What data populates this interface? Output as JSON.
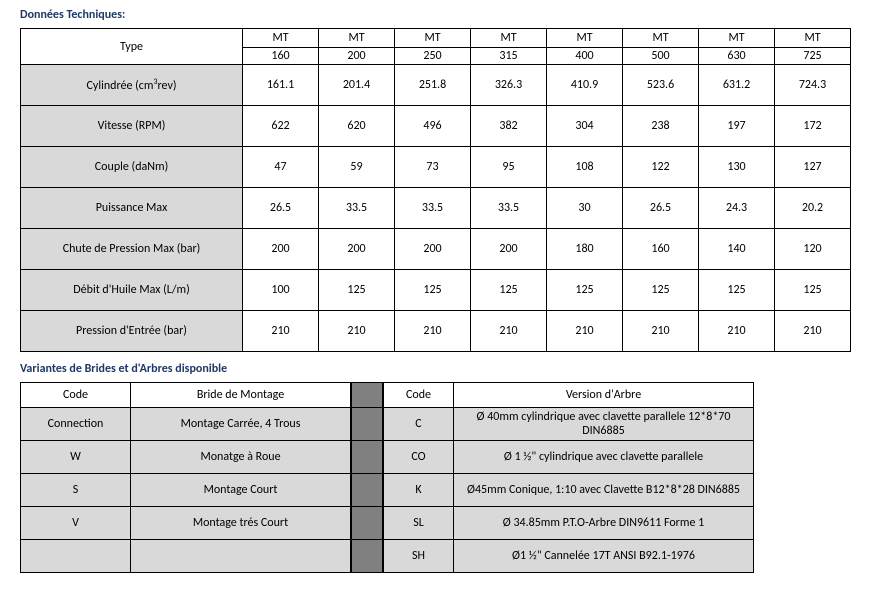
{
  "titles": {
    "tech": "Données Techniques:",
    "variants": "Variantes de Brides et d'Arbres disponible"
  },
  "tech_table": {
    "type_label": "Type",
    "model_prefix": "MT",
    "models": [
      "160",
      "200",
      "250",
      "315",
      "400",
      "500",
      "630",
      "725"
    ],
    "rows": [
      {
        "label_html": "Cylindrée (cm<sup>3</sup>rev)",
        "vals": [
          "161.1",
          "201.4",
          "251.8",
          "326.3",
          "410.9",
          "523.6",
          "631.2",
          "724.3"
        ]
      },
      {
        "label_html": "Vitesse (RPM)",
        "vals": [
          "622",
          "620",
          "496",
          "382",
          "304",
          "238",
          "197",
          "172"
        ]
      },
      {
        "label_html": "Couple (daNm)",
        "vals": [
          "47",
          "59",
          "73",
          "95",
          "108",
          "122",
          "130",
          "127"
        ]
      },
      {
        "label_html": "Puissance Max",
        "vals": [
          "26.5",
          "33.5",
          "33.5",
          "33.5",
          "30",
          "26.5",
          "24.3",
          "20.2"
        ]
      },
      {
        "label_html": "Chute de Pression Max (bar)",
        "vals": [
          "200",
          "200",
          "200",
          "200",
          "180",
          "160",
          "140",
          "120"
        ]
      },
      {
        "label_html": "Débit d'Huile Max (L/m)",
        "vals": [
          "100",
          "125",
          "125",
          "125",
          "125",
          "125",
          "125",
          "125"
        ]
      },
      {
        "label_html": "Pression d'Entrée (bar)",
        "vals": [
          "210",
          "210",
          "210",
          "210",
          "210",
          "210",
          "210",
          "210"
        ]
      }
    ]
  },
  "variants": {
    "left": {
      "h1": "Code",
      "h2": "Bride de Montage",
      "rows": [
        {
          "c": "Connection",
          "v": "Montage Carrée, 4 Trous"
        },
        {
          "c": "W",
          "v": "Monatge à Roue"
        },
        {
          "c": "S",
          "v": "Montage Court"
        },
        {
          "c": "V",
          "v": "Montage trés Court"
        },
        {
          "c": "",
          "v": ""
        }
      ]
    },
    "right": {
      "h1": "Code",
      "h2": "Version d'Arbre",
      "rows": [
        {
          "c": "C",
          "v": "Ø 40mm cylindrique avec clavette parallele 12*8*70 DIN6885"
        },
        {
          "c": "CO",
          "v": "Ø 1 ½\" cylindrique avec clavette parallele"
        },
        {
          "c": "K",
          "v": "Ø45mm Conique, 1:10 avec Clavette B12*8*28 DIN6885"
        },
        {
          "c": "SL",
          "v": "Ø 34.85mm P.T.O-Arbre DIN9611 Forme 1"
        },
        {
          "c": "SH",
          "v": "Ø1 ½\" Cannelée 17T ANSI B92.1-1976"
        }
      ]
    }
  },
  "style": {
    "shade": "#d9d9d9",
    "gap": "#808080",
    "title_color": "#1f3864"
  }
}
